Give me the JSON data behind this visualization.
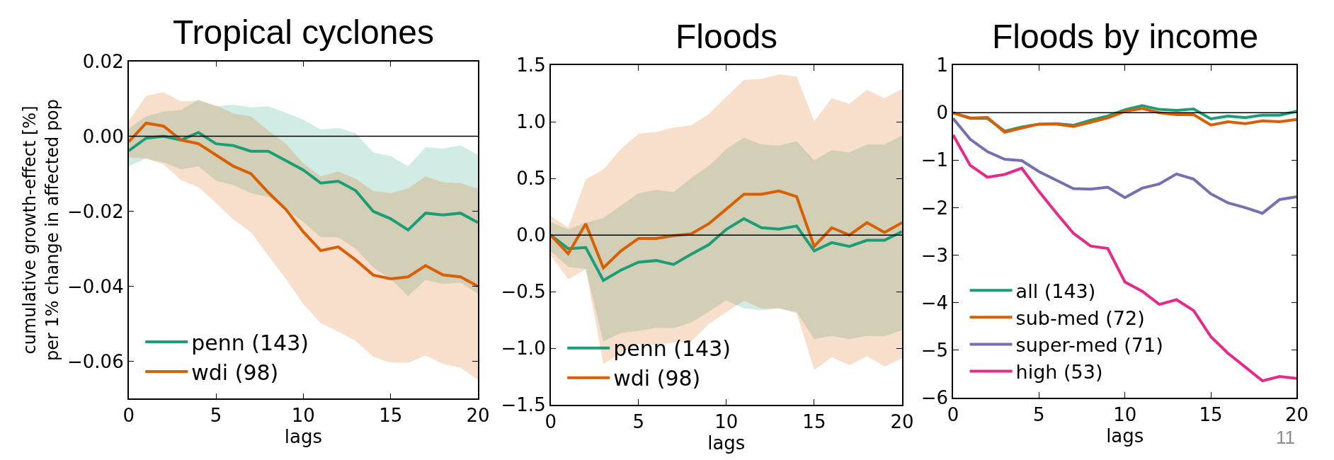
{
  "chart_data": [
    {
      "type": "line",
      "title": "Tropical cyclones",
      "xlabel": "lags",
      "ylabel": "cumulative growth-effect [%]\nper 1% change in affected pop",
      "x": [
        0,
        1,
        2,
        3,
        4,
        5,
        6,
        7,
        8,
        9,
        10,
        11,
        12,
        13,
        14,
        15,
        16,
        17,
        18,
        19,
        20
      ],
      "series": [
        {
          "name": "penn (143)",
          "color": "#1b9e77",
          "values": [
            -0.0039,
            -0.0005,
            0,
            -0.001,
            0.001,
            -0.002,
            -0.0025,
            -0.004,
            -0.004,
            -0.0065,
            -0.009,
            -0.0125,
            -0.012,
            -0.0145,
            -0.02,
            -0.022,
            -0.025,
            -0.0205,
            -0.021,
            -0.0205,
            -0.023
          ],
          "upper": [
            0.002,
            0.0053,
            0.0066,
            0.007,
            0.0098,
            0.008,
            0.0084,
            0.0077,
            0.008,
            0.0063,
            0.0044,
            0.0018,
            0.0022,
            0.0008,
            -0.0043,
            -0.0053,
            -0.008,
            -0.0029,
            -0.0033,
            -0.0024,
            -0.005
          ],
          "lower": [
            -0.008,
            -0.0059,
            -0.007,
            -0.0088,
            -0.008,
            -0.0119,
            -0.013,
            -0.0152,
            -0.0162,
            -0.0194,
            -0.0229,
            -0.0269,
            -0.027,
            -0.03,
            -0.035,
            -0.038,
            -0.0426,
            -0.0383,
            -0.0394,
            -0.039,
            -0.042
          ]
        },
        {
          "name": "wdi (98)",
          "color": "#d95f02",
          "values": [
            -0.0015,
            0.0035,
            0.0027,
            -0.001,
            -0.002,
            -0.005,
            -0.008,
            -0.01,
            -0.015,
            -0.0195,
            -0.0255,
            -0.0305,
            -0.0295,
            -0.033,
            -0.037,
            -0.038,
            -0.0375,
            -0.0345,
            -0.037,
            -0.0375,
            -0.04
          ],
          "upper": [
            0.004,
            0.0108,
            0.0117,
            0.0093,
            0.0095,
            0.0082,
            0.0061,
            0.0053,
            0.0015,
            -0.002,
            -0.0072,
            -0.0107,
            -0.0094,
            -0.0113,
            -0.0146,
            -0.0152,
            -0.0139,
            -0.0107,
            -0.0123,
            -0.0125,
            -0.014
          ],
          "lower": [
            -0.0056,
            -0.006,
            -0.0075,
            -0.0117,
            -0.0136,
            -0.0178,
            -0.0222,
            -0.0255,
            -0.0319,
            -0.038,
            -0.0447,
            -0.0498,
            -0.0521,
            -0.0546,
            -0.0588,
            -0.0604,
            -0.0604,
            -0.0585,
            -0.0607,
            -0.0617,
            -0.065
          ]
        }
      ],
      "xlim": [
        0,
        20
      ],
      "xticks": [
        0,
        5,
        10,
        15,
        20
      ],
      "ylim": [
        -0.07,
        0.02
      ],
      "yticks": [
        {
          "value": 0.02,
          "label": "0.02"
        },
        {
          "value": 0,
          "label": "0.00"
        },
        {
          "value": -0.02,
          "label": "−0.02"
        },
        {
          "value": -0.04,
          "label": "−0.04"
        },
        {
          "value": -0.06,
          "label": "−0.06"
        }
      ],
      "ref_lines": [
        {
          "axis": "y",
          "value": 0,
          "color": "#000000"
        }
      ],
      "grid": false,
      "legend": "bottom left"
    },
    {
      "type": "line",
      "title": "Floods",
      "xlabel": "lags",
      "x": [
        0,
        1,
        2,
        3,
        4,
        5,
        6,
        7,
        8,
        9,
        10,
        11,
        12,
        13,
        14,
        15,
        16,
        17,
        18,
        19,
        20
      ],
      "series": [
        {
          "name": "penn (143)",
          "color": "#1b9e77",
          "values": [
            0,
            -0.12,
            -0.11,
            -0.4,
            -0.31,
            -0.24,
            -0.225,
            -0.26,
            -0.17,
            -0.085,
            0.05,
            0.145,
            0.065,
            0.053,
            0.08,
            -0.14,
            -0.067,
            -0.1,
            -0.046,
            -0.046,
            0.03
          ],
          "upper": [
            0.115,
            0.05,
            0.11,
            0.15,
            0.26,
            0.37,
            0.4,
            0.38,
            0.505,
            0.61,
            0.76,
            0.86,
            0.8,
            0.79,
            0.83,
            0.66,
            0.75,
            0.73,
            0.8,
            0.8,
            0.88
          ],
          "lower": [
            -0.14,
            -0.28,
            -0.3,
            -0.94,
            -0.865,
            -0.846,
            -0.82,
            -0.823,
            -0.773,
            -0.677,
            -0.578,
            -0.647,
            -0.665,
            -0.647,
            -0.68,
            -0.92,
            -0.89,
            -0.92,
            -0.89,
            -0.895,
            -0.84
          ]
        },
        {
          "name": "wdi (98)",
          "color": "#d95f02",
          "values": [
            0,
            -0.165,
            0.1,
            -0.29,
            -0.14,
            -0.03,
            -0.03,
            -0.005,
            0.01,
            0.1,
            0.23,
            0.36,
            0.36,
            0.39,
            0.34,
            -0.1,
            0.065,
            0,
            0.11,
            0.023,
            0.11
          ],
          "upper": [
            0.17,
            0.065,
            0.49,
            0.58,
            0.76,
            0.895,
            0.91,
            0.95,
            0.97,
            1.07,
            1.22,
            1.37,
            1.38,
            1.42,
            1.4,
            1.005,
            1.21,
            1.16,
            1.285,
            1.21,
            1.29
          ],
          "lower": [
            -0.18,
            -0.39,
            -0.3,
            -1.14,
            -1.04,
            -0.96,
            -0.97,
            -0.95,
            -0.94,
            -0.785,
            -0.68,
            -0.58,
            -0.647,
            -0.647,
            -0.69,
            -1.19,
            -1.08,
            -1.15,
            -1.07,
            -1.16,
            -1.09
          ]
        }
      ],
      "xlim": [
        0,
        20
      ],
      "xticks": [
        0,
        5,
        10,
        15,
        20
      ],
      "ylim": [
        -1.5,
        1.5
      ],
      "yticks": [
        {
          "value": 1.5,
          "label": "1.5"
        },
        {
          "value": 1,
          "label": "1.0"
        },
        {
          "value": 0.5,
          "label": "0.5"
        },
        {
          "value": 0,
          "label": "0.0"
        },
        {
          "value": -0.5,
          "label": "−0.5"
        },
        {
          "value": -1,
          "label": "−1.0"
        },
        {
          "value": -1.5,
          "label": "−1.5"
        }
      ],
      "ref_lines": [
        {
          "axis": "y",
          "value": 0,
          "color": "#000000"
        }
      ],
      "grid": false,
      "legend": "bottom left"
    },
    {
      "type": "line",
      "title": "Floods by income",
      "xlabel": "lags",
      "x": [
        0,
        1,
        2,
        3,
        4,
        5,
        6,
        7,
        8,
        9,
        10,
        11,
        12,
        13,
        14,
        15,
        16,
        17,
        18,
        19,
        20
      ],
      "series": [
        {
          "name": "all (143)",
          "color": "#1b9e77",
          "values": [
            0,
            -0.12,
            -0.12,
            -0.39,
            -0.3,
            -0.24,
            -0.23,
            -0.265,
            -0.16,
            -0.07,
            0.06,
            0.15,
            0.07,
            0.05,
            0.08,
            -0.13,
            -0.07,
            -0.105,
            -0.05,
            -0.05,
            0.03
          ]
        },
        {
          "name": "sub-med (72)",
          "color": "#d95f02",
          "values": [
            0,
            -0.11,
            -0.1,
            -0.41,
            -0.32,
            -0.24,
            -0.24,
            -0.29,
            -0.2,
            -0.11,
            0.03,
            0.09,
            0,
            -0.04,
            -0.04,
            -0.26,
            -0.19,
            -0.23,
            -0.17,
            -0.19,
            -0.14
          ]
        },
        {
          "name": "super-med (71)",
          "color": "#7570b3",
          "values": [
            -0.12,
            -0.56,
            -0.82,
            -0.98,
            -1.01,
            -1.24,
            -1.42,
            -1.6,
            -1.61,
            -1.57,
            -1.79,
            -1.59,
            -1.5,
            -1.29,
            -1.4,
            -1.71,
            -1.9,
            -2,
            -2.12,
            -1.83,
            -1.77
          ]
        },
        {
          "name": "high (53)",
          "color": "#e7298a",
          "values": [
            -0.47,
            -1.11,
            -1.36,
            -1.3,
            -1.17,
            -1.66,
            -2.11,
            -2.54,
            -2.81,
            -2.86,
            -3.57,
            -3.76,
            -4.04,
            -3.94,
            -4.17,
            -4.72,
            -5.07,
            -5.36,
            -5.65,
            -5.56,
            -5.6
          ]
        }
      ],
      "xlim": [
        0,
        20
      ],
      "xticks": [
        0,
        5,
        10,
        15,
        20
      ],
      "ylim": [
        -6,
        1
      ],
      "yticks": [
        {
          "value": 1,
          "label": "1"
        },
        {
          "value": 0,
          "label": "0"
        },
        {
          "value": -1,
          "label": "−1"
        },
        {
          "value": -2,
          "label": "−2"
        },
        {
          "value": -3,
          "label": "−3"
        },
        {
          "value": -4,
          "label": "−4"
        },
        {
          "value": -5,
          "label": "−5"
        },
        {
          "value": -6,
          "label": "−6"
        }
      ],
      "ref_lines": [
        {
          "axis": "y",
          "value": 0,
          "color": "#000000"
        }
      ],
      "annotations": [
        "11"
      ],
      "grid": false,
      "legend": "bottom left"
    }
  ]
}
